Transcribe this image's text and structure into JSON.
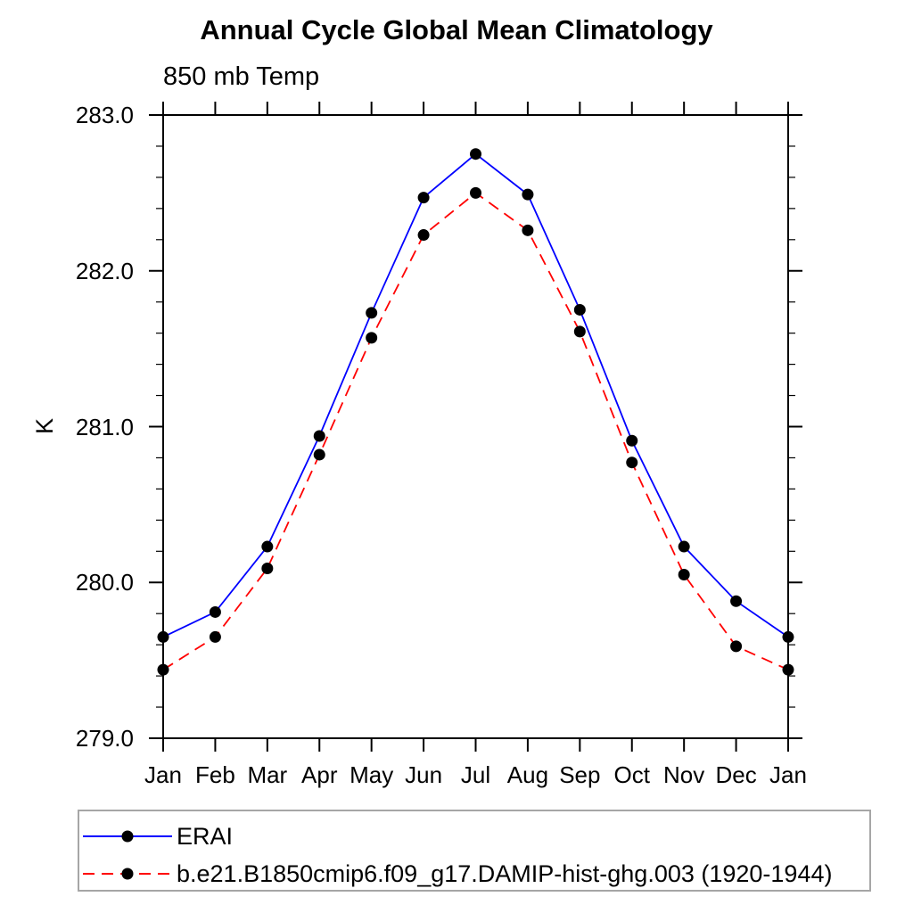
{
  "title": "Annual Cycle Global Mean Climatology",
  "subtitle": "850 mb Temp",
  "y_axis": {
    "label": "K",
    "tick_labels": [
      "283.0",
      "282.0",
      "281.0",
      "280.0",
      "279.0"
    ]
  },
  "x_axis": {
    "tick_labels": [
      "Jan",
      "Feb",
      "Mar",
      "Apr",
      "May",
      "Jun",
      "Jul",
      "Aug",
      "Sep",
      "Oct",
      "Nov",
      "Dec",
      "Jan"
    ]
  },
  "colors": {
    "background": "#ffffff",
    "axis": "#000000",
    "marker": "#000000",
    "erai_line": "#0000ff",
    "model_line": "#ff0000",
    "legend_border": "#a6a6a6"
  },
  "legend": {
    "position": "bottom-left-box"
  },
  "chart_data": {
    "type": "line",
    "title": "Annual Cycle Global Mean Climatology",
    "subtitle": "850 mb Temp",
    "xlabel": "",
    "ylabel": "K",
    "categories": [
      "Jan",
      "Feb",
      "Mar",
      "Apr",
      "May",
      "Jun",
      "Jul",
      "Aug",
      "Sep",
      "Oct",
      "Nov",
      "Dec",
      "Jan"
    ],
    "ylim": [
      279.0,
      283.0
    ],
    "y_major_step": 1.0,
    "y_minor_step": 0.2,
    "grid": false,
    "legend_position": "bottom-left-box",
    "series": [
      {
        "name": "ERAI",
        "color": "#0000ff",
        "line_style": "solid",
        "marker": "filled-circle",
        "marker_color": "#000000",
        "values": [
          279.65,
          279.81,
          280.23,
          280.94,
          281.73,
          282.47,
          282.75,
          282.49,
          281.75,
          280.91,
          280.23,
          279.88,
          279.65
        ]
      },
      {
        "name": "b.e21.B1850cmip6.f09_g17.DAMIP-hist-ghg.003 (1920-1944)",
        "color": "#ff0000",
        "line_style": "dashed",
        "marker": "filled-circle",
        "marker_color": "#000000",
        "values": [
          279.44,
          279.65,
          280.09,
          280.82,
          281.57,
          282.23,
          282.5,
          282.26,
          281.61,
          280.77,
          280.05,
          279.59,
          279.44
        ]
      }
    ]
  }
}
